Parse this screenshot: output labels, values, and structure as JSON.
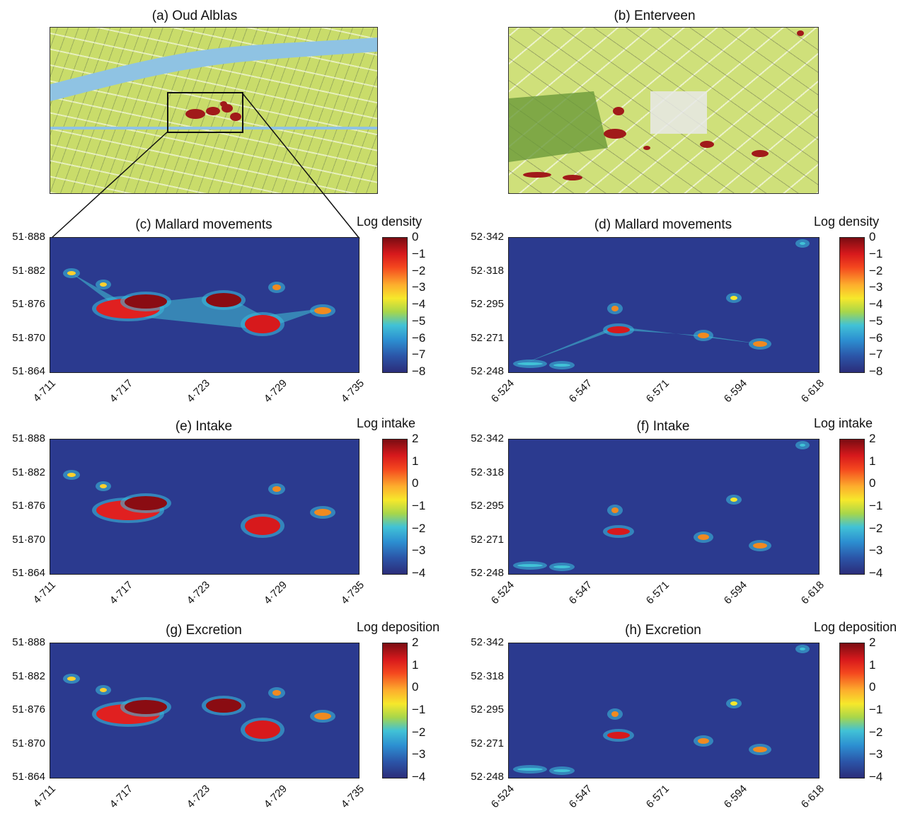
{
  "panels": {
    "a": {
      "title": "(a) Oud Alblas"
    },
    "b": {
      "title": "(b) Enterveen"
    },
    "c": {
      "title": "(c) Mallard movements",
      "cbar_title": "Log density"
    },
    "d": {
      "title": "(d) Mallard movements",
      "cbar_title": "Log density"
    },
    "e": {
      "title": "(e) Intake",
      "cbar_title": "Log intake"
    },
    "f": {
      "title": "(f) Intake",
      "cbar_title": "Log intake"
    },
    "g": {
      "title": "(g) Excretion",
      "cbar_title": "Log deposition"
    },
    "h": {
      "title": "(h) Excretion",
      "cbar_title": "Log deposition"
    }
  },
  "axes": {
    "left_y": [
      "51·888",
      "51·882",
      "51·876",
      "51·870",
      "51·864"
    ],
    "left_x": [
      "4·711",
      "4·717",
      "4·723",
      "4·729",
      "4·735"
    ],
    "right_y": [
      "52·342",
      "52·318",
      "52·295",
      "52·271",
      "52·248"
    ],
    "right_x": [
      "6·524",
      "6·547",
      "6·571",
      "6·594",
      "6·618"
    ]
  },
  "colorbars": {
    "density": [
      "0",
      "−1",
      "−2",
      "−3",
      "−4",
      "−5",
      "−6",
      "−7",
      "−8"
    ],
    "intake": [
      "2",
      "1",
      "0",
      "−1",
      "−2",
      "−3",
      "−4"
    ]
  },
  "chart_data": [
    {
      "type": "heatmap",
      "panel": "c",
      "title": "(c) Mallard movements",
      "zlabel": "Log density",
      "zlim": [
        -8,
        0
      ],
      "xlim": [
        4.711,
        4.735
      ],
      "ylim": [
        51.864,
        51.888
      ]
    },
    {
      "type": "heatmap",
      "panel": "d",
      "title": "(d) Mallard movements",
      "zlabel": "Log density",
      "zlim": [
        -8,
        0
      ],
      "xlim": [
        6.524,
        6.618
      ],
      "ylim": [
        52.248,
        52.342
      ]
    },
    {
      "type": "heatmap",
      "panel": "e",
      "title": "(e) Intake",
      "zlabel": "Log intake",
      "zlim": [
        -4,
        2
      ],
      "xlim": [
        4.711,
        4.735
      ],
      "ylim": [
        51.864,
        51.888
      ]
    },
    {
      "type": "heatmap",
      "panel": "f",
      "title": "(f) Intake",
      "zlabel": "Log intake",
      "zlim": [
        -4,
        2
      ],
      "xlim": [
        6.524,
        6.618
      ],
      "ylim": [
        52.248,
        52.342
      ]
    },
    {
      "type": "heatmap",
      "panel": "g",
      "title": "(g) Excretion",
      "zlabel": "Log deposition",
      "zlim": [
        -4,
        2
      ],
      "xlim": [
        4.711,
        4.735
      ],
      "ylim": [
        51.864,
        51.888
      ]
    },
    {
      "type": "heatmap",
      "panel": "h",
      "title": "(h) Excretion",
      "zlabel": "Log deposition",
      "zlim": [
        -4,
        2
      ],
      "xlim": [
        6.524,
        6.618
      ],
      "ylim": [
        52.248,
        52.342
      ]
    }
  ]
}
